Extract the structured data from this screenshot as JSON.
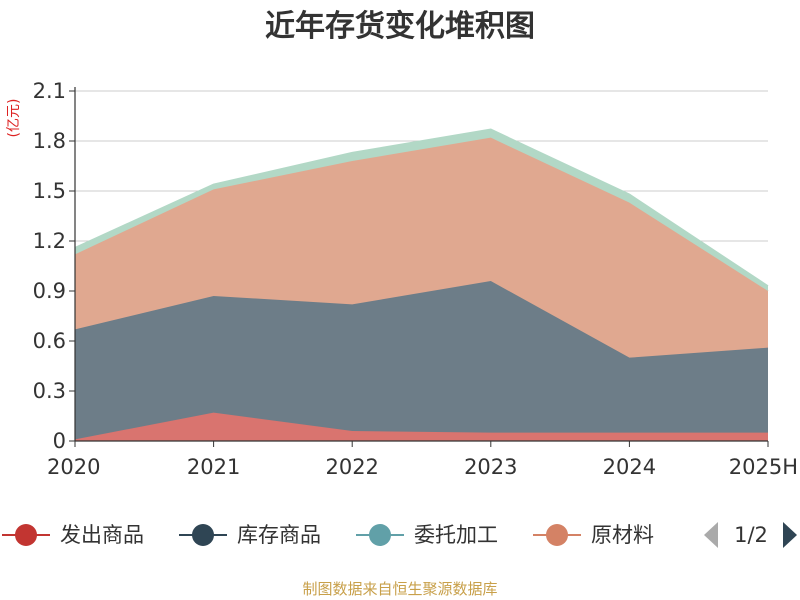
{
  "chart_data": {
    "type": "area",
    "stacked": true,
    "title": "近年存货变化堆积图",
    "ylabel": "(亿元)",
    "x": [
      "2020",
      "2021",
      "2022",
      "2023",
      "2024",
      "2025H"
    ],
    "ylim": [
      0,
      2.1
    ],
    "yticks": [
      "0",
      "0.3",
      "0.6",
      "0.9",
      "1.2",
      "1.5",
      "1.8",
      "2.1"
    ],
    "grid": true,
    "legend_position": "bottom",
    "series": [
      {
        "name": "发出商品",
        "color": "#c23531",
        "fill": "#d9746f",
        "values": [
          0.01,
          0.17,
          0.06,
          0.05,
          0.05,
          0.05
        ]
      },
      {
        "name": "库存商品",
        "color": "#2f4554",
        "fill": "#6d7d88",
        "values": [
          0.66,
          0.7,
          0.76,
          0.91,
          0.45,
          0.51
        ]
      },
      {
        "name": "委托加工",
        "color": "#61a0a8",
        "fill": "#b2d8c6",
        "values": [
          0.04,
          0.03,
          0.05,
          0.05,
          0.05,
          0.03
        ]
      },
      {
        "name": "原材料",
        "color": "#d48265",
        "fill": "#e0a890",
        "values": [
          0.45,
          0.64,
          0.86,
          0.86,
          0.93,
          0.34
        ]
      }
    ],
    "stack_order": [
      0,
      1,
      3,
      2
    ]
  },
  "legend": {
    "items": [
      "发出商品",
      "库存商品",
      "委托加工",
      "原材料"
    ],
    "page": "1/2"
  },
  "source": "制图数据来自恒生聚源数据库"
}
